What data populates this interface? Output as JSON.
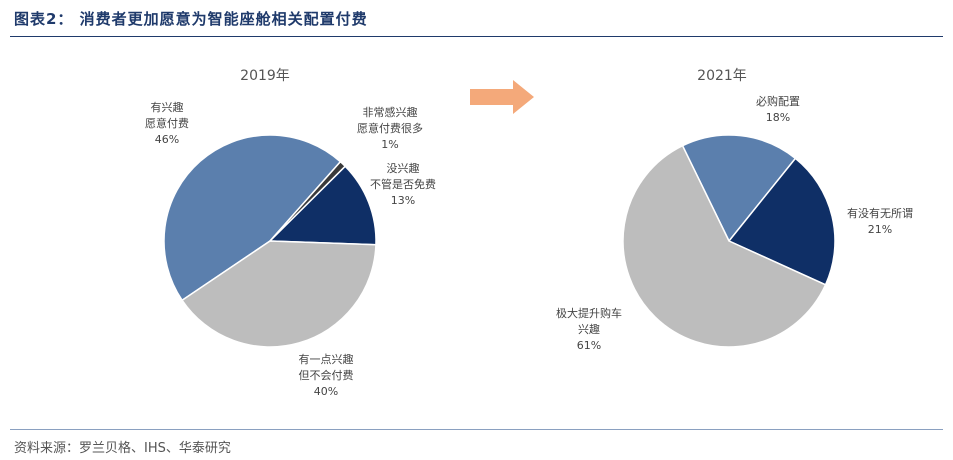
{
  "header": {
    "title": "图表2： 消费者更加愿意为智能座舱相关配置付费"
  },
  "footer": {
    "source": "资料来源：罗兰贝格、IHS、华泰研究"
  },
  "arrow_color": "#f4a97a",
  "chart_data": [
    {
      "type": "pie",
      "title": "2019年",
      "slices": [
        {
          "label_lines": [
            "有兴趣",
            "愿意付费"
          ],
          "pct_label": "46%",
          "value": 46,
          "color": "#5b7fad"
        },
        {
          "label_lines": [
            "非常感兴趣",
            "愿意付费很多"
          ],
          "pct_label": "1%",
          "value": 1,
          "color": "#3a3a3a"
        },
        {
          "label_lines": [
            "没兴趣",
            "不管是否免费"
          ],
          "pct_label": "13%",
          "value": 13,
          "color": "#0f2f66"
        },
        {
          "label_lines": [
            "有一点兴趣",
            "但不会付费"
          ],
          "pct_label": "40%",
          "value": 40,
          "color": "#bdbdbd"
        }
      ]
    },
    {
      "type": "pie",
      "title": "2021年",
      "slices": [
        {
          "label_lines": [
            "必购配置"
          ],
          "pct_label": "18%",
          "value": 18,
          "color": "#5b7fad"
        },
        {
          "label_lines": [
            "有没有无所谓"
          ],
          "pct_label": "21%",
          "value": 21,
          "color": "#0f2f66"
        },
        {
          "label_lines": [
            "极大提升购车",
            "兴趣"
          ],
          "pct_label": "61%",
          "value": 61,
          "color": "#bdbdbd"
        }
      ]
    }
  ]
}
